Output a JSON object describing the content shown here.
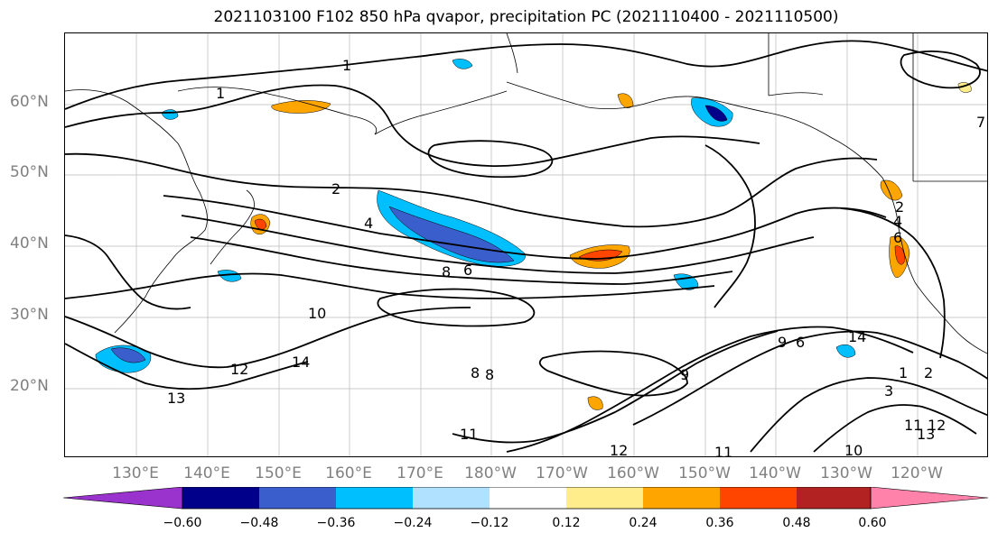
{
  "title": "2021103100 F102 850 hPa qvapor, precipitation PC (2021110400 - 2021110500)",
  "lat_labels": [
    "60°N",
    "50°N",
    "40°N",
    "30°N",
    "20°N"
  ],
  "lon_labels": [
    "130°E",
    "140°E",
    "150°E",
    "160°E",
    "170°E",
    "180°W",
    "170°W",
    "160°W",
    "150°W",
    "140°W",
    "130°W",
    "120°W"
  ],
  "contour_labels": [
    "1",
    "1",
    "2",
    "4",
    "6",
    "8",
    "10",
    "12",
    "13",
    "14",
    "9",
    "8",
    "6",
    "4",
    "2",
    "14",
    "1",
    "2",
    "3",
    "11",
    "12",
    "13",
    "11",
    "10",
    "12",
    "11",
    "9",
    "6",
    "8",
    "7"
  ],
  "colorbar": {
    "tick_labels": [
      "−0.60",
      "−0.48",
      "−0.36",
      "−0.24",
      "−0.12",
      "0.12",
      "0.24",
      "0.36",
      "0.48",
      "0.60"
    ],
    "colors": [
      "#9a32cd",
      "#00008b",
      "#3a5fcd",
      "#00bfff",
      "#b0e2ff",
      "#ffffff",
      "#ffec8b",
      "#ffa500",
      "#ff4500",
      "#b22222",
      "#ff82ab"
    ]
  },
  "colors": {
    "contour": "#000000",
    "coastline": "#000000",
    "gridline": "#808080",
    "axis_label": "#808080"
  }
}
